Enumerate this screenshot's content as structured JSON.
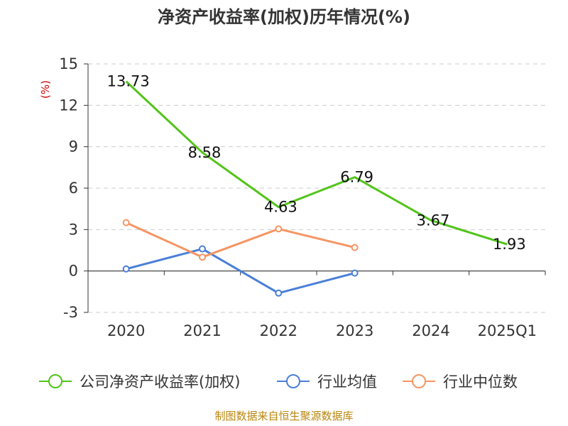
{
  "chart_data": {
    "type": "line",
    "title": "净资产收益率(加权)历年情况(%)",
    "ylabel": "(%)",
    "categories": [
      "2020",
      "2021",
      "2022",
      "2023",
      "2024",
      "2025Q1"
    ],
    "ylim": [
      -3,
      15
    ],
    "yticks": [
      -3,
      0,
      3,
      6,
      9,
      12,
      15
    ],
    "grid": true,
    "legend_position": "bottom",
    "series": [
      {
        "name": "公司净资产收益率(加权)",
        "color": "#52c41a",
        "values": [
          13.73,
          8.58,
          4.63,
          6.79,
          3.67,
          1.93
        ],
        "show_labels": true,
        "show_markers": false
      },
      {
        "name": "行业均值",
        "color": "#4a7fd8",
        "values": [
          0.15,
          1.6,
          -1.6,
          -0.15,
          null,
          null
        ],
        "show_labels": false,
        "show_markers": true
      },
      {
        "name": "行业中位数",
        "color": "#f59563",
        "values": [
          3.5,
          1.0,
          3.05,
          1.7,
          null,
          null
        ],
        "show_labels": false,
        "show_markers": true
      }
    ]
  },
  "source": "制图数据来自恒生聚源数据库"
}
